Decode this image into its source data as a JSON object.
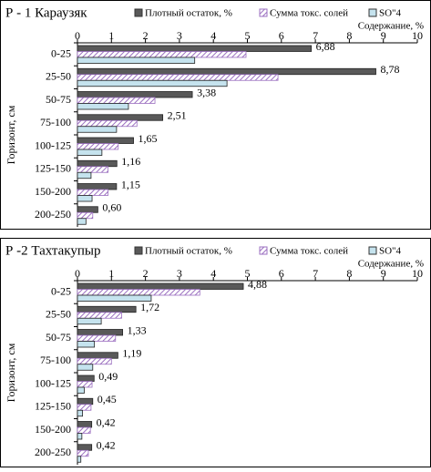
{
  "chart_data": [
    {
      "type": "bar",
      "title": "Р - 1 Караузяк",
      "x_label": "Содержание, %",
      "y_label": "Горизонт, см",
      "categories": [
        "0-25",
        "25-50",
        "50-75",
        "75-100",
        "100-125",
        "125-150",
        "150-200",
        "200-250"
      ],
      "xlim": [
        0,
        10
      ],
      "xticks": [
        0,
        1,
        2,
        3,
        4,
        5,
        6,
        7,
        8,
        9,
        10
      ],
      "series": [
        {
          "name": "Плотный остаток, %",
          "color": "#595959",
          "values": [
            6.88,
            8.78,
            3.38,
            2.51,
            1.65,
            1.16,
            1.15,
            0.6
          ],
          "value_labels": [
            "6,88",
            "8,78",
            "3,38",
            "2,51",
            "1,65",
            "1,16",
            "1,15",
            "0,60"
          ]
        },
        {
          "name": "Сумма токс. солей",
          "color": "#9b6fc0",
          "values": [
            4.96,
            5.9,
            2.28,
            1.75,
            1.2,
            0.9,
            0.9,
            0.45
          ]
        },
        {
          "name": "SO\"4",
          "color": "#c5e3ee",
          "values": [
            3.45,
            4.4,
            1.5,
            1.15,
            0.72,
            0.4,
            0.43,
            0.25
          ]
        }
      ]
    },
    {
      "type": "bar",
      "title": "Р -2 Тахтакупыр",
      "x_label": "Содержание, %",
      "y_label": "Горизонт, см",
      "categories": [
        "0-25",
        "25-50",
        "50-75",
        "75-100",
        "100-125",
        "125-150",
        "150-200",
        "200-250"
      ],
      "xlim": [
        0,
        10
      ],
      "xticks": [
        0,
        1,
        2,
        3,
        4,
        5,
        6,
        7,
        8,
        9,
        10
      ],
      "series": [
        {
          "name": "Плотный остаток, %",
          "color": "#595959",
          "values": [
            4.88,
            1.72,
            1.33,
            1.19,
            0.49,
            0.45,
            0.42,
            0.42
          ],
          "value_labels": [
            "4,88",
            "1,72",
            "1,33",
            "1,19",
            "0,49",
            "0,45",
            "0,42",
            "0,42"
          ]
        },
        {
          "name": "Сумма токс. солей",
          "color": "#9b6fc0",
          "values": [
            3.6,
            1.3,
            1.12,
            1.0,
            0.43,
            0.4,
            0.38,
            0.32
          ]
        },
        {
          "name": "SO\"4",
          "color": "#c5e3ee",
          "values": [
            2.17,
            0.7,
            0.5,
            0.45,
            0.2,
            0.15,
            0.13,
            0.1
          ]
        }
      ]
    }
  ]
}
